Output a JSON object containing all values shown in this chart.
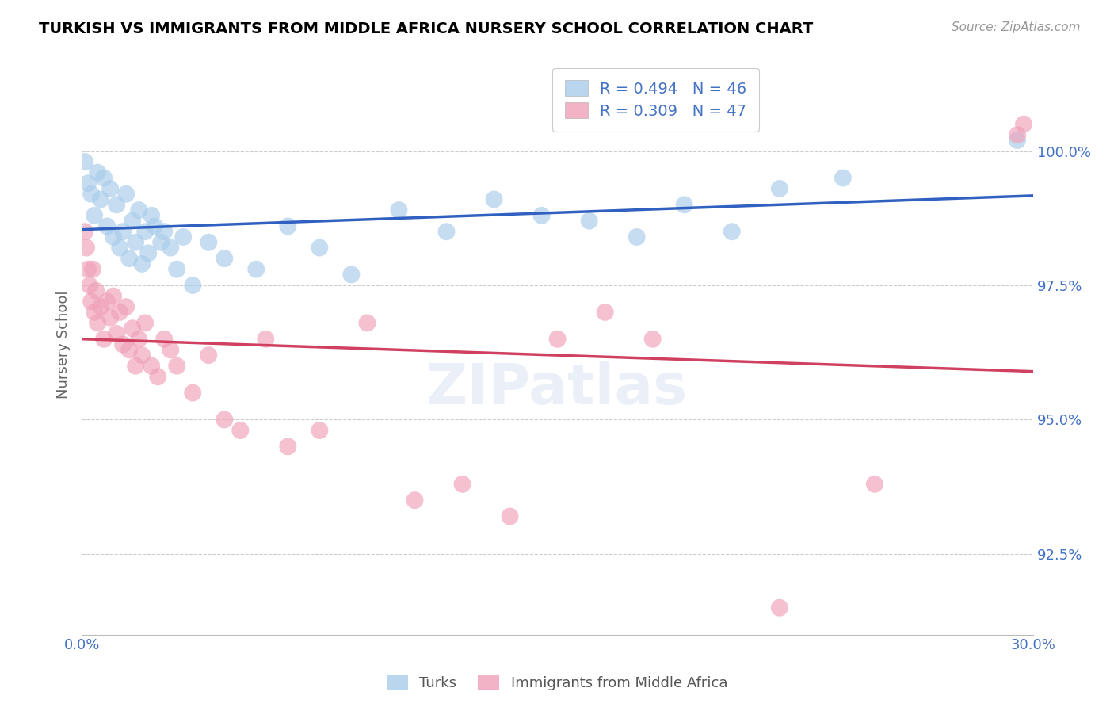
{
  "title": "TURKISH VS IMMIGRANTS FROM MIDDLE AFRICA NURSERY SCHOOL CORRELATION CHART",
  "source": "Source: ZipAtlas.com",
  "ylabel": "Nursery School",
  "xmin": 0.0,
  "xmax": 30.0,
  "ymin": 91.0,
  "ymax": 101.8,
  "turks_color": "#A8CCEA",
  "immigrants_color": "#F0A0B8",
  "line_turks_color": "#3060C0",
  "line_immigrants_color": "#D04060",
  "R_turks": 0.494,
  "N_turks": 46,
  "R_immigrants": 0.309,
  "N_immigrants": 47,
  "turks_x": [
    0.1,
    0.2,
    0.3,
    0.4,
    0.5,
    0.6,
    0.7,
    0.8,
    0.9,
    1.0,
    1.1,
    1.2,
    1.3,
    1.4,
    1.5,
    1.6,
    1.7,
    1.8,
    1.9,
    2.0,
    2.1,
    2.2,
    2.3,
    2.5,
    2.6,
    2.8,
    3.0,
    3.2,
    3.5,
    4.0,
    4.5,
    5.5,
    6.5,
    7.5,
    8.5,
    10.0,
    11.5,
    13.0,
    14.5,
    16.0,
    17.5,
    19.0,
    20.5,
    22.0,
    24.0,
    29.5
  ],
  "turks_y": [
    99.8,
    99.4,
    99.2,
    98.8,
    99.6,
    99.1,
    99.5,
    98.6,
    99.3,
    98.4,
    99.0,
    98.2,
    98.5,
    99.2,
    98.0,
    98.7,
    98.3,
    98.9,
    97.9,
    98.5,
    98.1,
    98.8,
    98.6,
    98.3,
    98.5,
    98.2,
    97.8,
    98.4,
    97.5,
    98.3,
    98.0,
    97.8,
    98.6,
    98.2,
    97.7,
    98.9,
    98.5,
    99.1,
    98.8,
    98.7,
    98.4,
    99.0,
    98.5,
    99.3,
    99.5,
    100.2
  ],
  "immigrants_x": [
    0.1,
    0.15,
    0.2,
    0.25,
    0.3,
    0.35,
    0.4,
    0.45,
    0.5,
    0.6,
    0.7,
    0.8,
    0.9,
    1.0,
    1.1,
    1.2,
    1.3,
    1.4,
    1.5,
    1.6,
    1.7,
    1.8,
    1.9,
    2.0,
    2.2,
    2.4,
    2.6,
    2.8,
    3.0,
    3.5,
    4.0,
    4.5,
    5.0,
    5.8,
    6.5,
    7.5,
    9.0,
    10.5,
    12.0,
    13.5,
    15.0,
    16.5,
    18.0,
    22.0,
    25.0,
    29.5,
    29.7
  ],
  "immigrants_y": [
    98.5,
    98.2,
    97.8,
    97.5,
    97.2,
    97.8,
    97.0,
    97.4,
    96.8,
    97.1,
    96.5,
    97.2,
    96.9,
    97.3,
    96.6,
    97.0,
    96.4,
    97.1,
    96.3,
    96.7,
    96.0,
    96.5,
    96.2,
    96.8,
    96.0,
    95.8,
    96.5,
    96.3,
    96.0,
    95.5,
    96.2,
    95.0,
    94.8,
    96.5,
    94.5,
    94.8,
    96.8,
    93.5,
    93.8,
    93.2,
    96.5,
    97.0,
    96.5,
    91.5,
    93.8,
    100.3,
    100.5
  ]
}
